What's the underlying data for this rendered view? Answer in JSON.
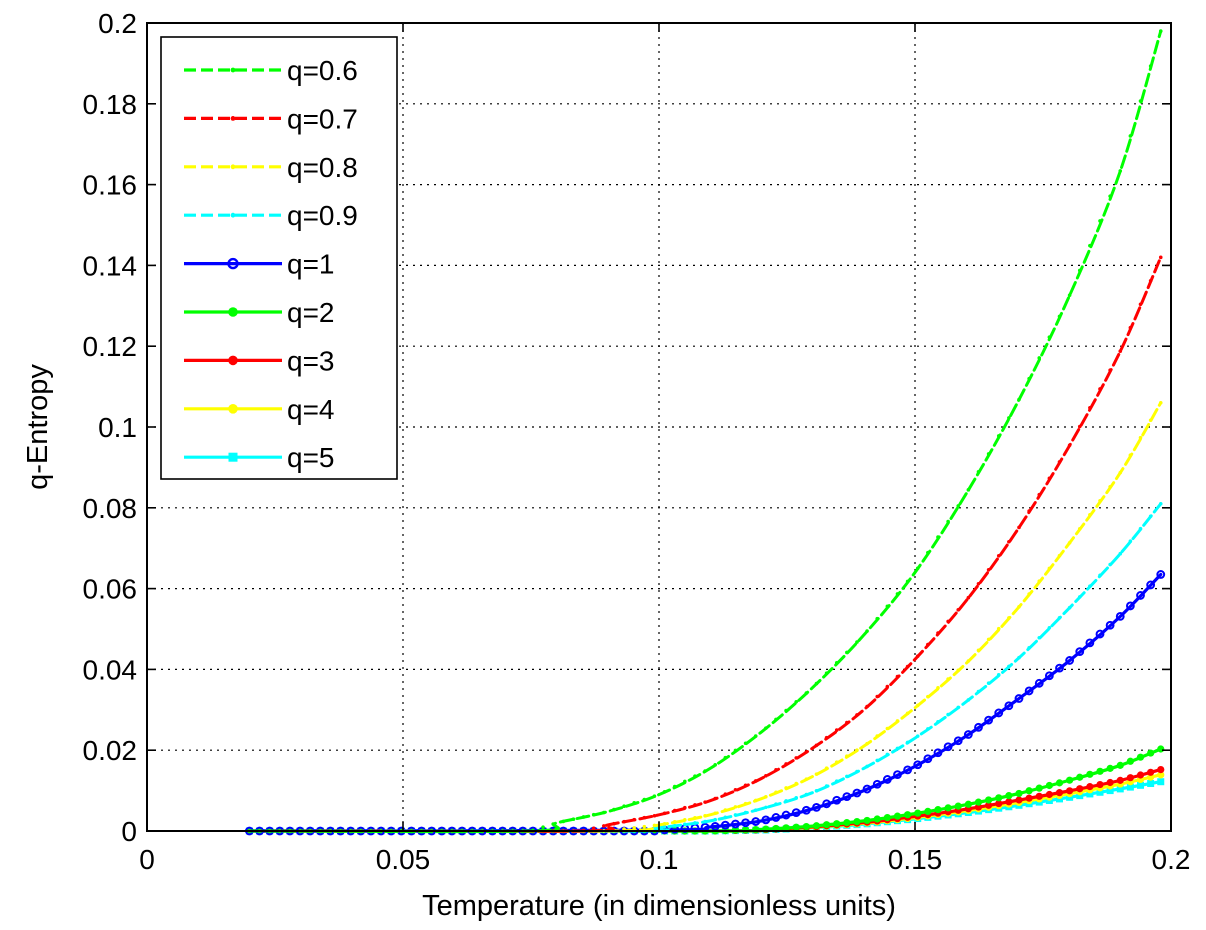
{
  "chart_data": {
    "type": "line",
    "title": "",
    "xlabel": "Temperature (in dimensionless units)",
    "ylabel": "q-Entropy",
    "xlim": [
      0,
      0.2
    ],
    "ylim": [
      0,
      0.2
    ],
    "xticks": [
      0,
      0.05,
      0.1,
      0.15,
      0.2
    ],
    "xtick_labels": [
      "0",
      "0.05",
      "0.1",
      "0.15",
      "0.2"
    ],
    "yticks": [
      0,
      0.02,
      0.04,
      0.06,
      0.08,
      0.1,
      0.12,
      0.14,
      0.16,
      0.18,
      0.2
    ],
    "ytick_labels": [
      "0",
      "0.02",
      "0.04",
      "0.06",
      "0.08",
      "0.1",
      "0.12",
      "0.14",
      "0.16",
      "0.18",
      "0.2"
    ],
    "grid": true,
    "legend_position": "top-left",
    "series": [
      {
        "name": "q=0.6",
        "color": "#00ff00",
        "style": "dashed",
        "marker": "point",
        "x": [
          0.075,
          0.08,
          0.09,
          0.1,
          0.11,
          0.12,
          0.13,
          0.14,
          0.15,
          0.16,
          0.17,
          0.18,
          0.19,
          0.198
        ],
        "y": [
          0.0,
          0.002,
          0.0048,
          0.009,
          0.0155,
          0.0245,
          0.0355,
          0.0485,
          0.064,
          0.0835,
          0.106,
          0.132,
          0.163,
          0.198
        ]
      },
      {
        "name": "q=0.7",
        "color": "#ff0000",
        "style": "dashed",
        "marker": "point",
        "x": [
          0.085,
          0.09,
          0.1,
          0.11,
          0.12,
          0.13,
          0.14,
          0.15,
          0.16,
          0.17,
          0.18,
          0.19,
          0.198
        ],
        "y": [
          0.0,
          0.0015,
          0.004,
          0.0075,
          0.013,
          0.0205,
          0.03,
          0.0425,
          0.057,
          0.0745,
          0.095,
          0.1185,
          0.142
        ]
      },
      {
        "name": "q=0.8",
        "color": "#ffff00",
        "style": "dashed",
        "marker": "point",
        "x": [
          0.09,
          0.1,
          0.11,
          0.12,
          0.13,
          0.14,
          0.15,
          0.16,
          0.17,
          0.18,
          0.19,
          0.198
        ],
        "y": [
          0.0,
          0.0015,
          0.004,
          0.008,
          0.0135,
          0.021,
          0.0305,
          0.0415,
          0.055,
          0.071,
          0.0885,
          0.106
        ]
      },
      {
        "name": "q=0.9",
        "color": "#00ffff",
        "style": "dashed",
        "marker": "point",
        "x": [
          0.095,
          0.1,
          0.11,
          0.12,
          0.13,
          0.14,
          0.15,
          0.16,
          0.17,
          0.18,
          0.19,
          0.198
        ],
        "y": [
          0.0,
          0.0008,
          0.0025,
          0.0055,
          0.0095,
          0.0155,
          0.023,
          0.032,
          0.0425,
          0.055,
          0.0685,
          0.081
        ]
      },
      {
        "name": "q=1",
        "color": "#0000ff",
        "style": "solid",
        "marker": "circle",
        "x": [
          0.1,
          0.11,
          0.12,
          0.13,
          0.14,
          0.15,
          0.16,
          0.17,
          0.18,
          0.19,
          0.198
        ],
        "y": [
          0.0002,
          0.001,
          0.0025,
          0.0055,
          0.01,
          0.016,
          0.0235,
          0.0325,
          0.042,
          0.053,
          0.0635
        ]
      },
      {
        "name": "q=2",
        "color": "#00ff00",
        "style": "solid",
        "marker": "dot",
        "x": [
          0.11,
          0.12,
          0.13,
          0.14,
          0.15,
          0.16,
          0.17,
          0.18,
          0.19,
          0.198
        ],
        "y": [
          0.0,
          0.0004,
          0.0012,
          0.0025,
          0.0043,
          0.0065,
          0.0092,
          0.0125,
          0.0162,
          0.0203
        ]
      },
      {
        "name": "q=3",
        "color": "#ff0000",
        "style": "solid",
        "marker": "dot",
        "x": [
          0.11,
          0.12,
          0.13,
          0.14,
          0.15,
          0.16,
          0.17,
          0.18,
          0.19,
          0.198
        ],
        "y": [
          0.0,
          0.0003,
          0.001,
          0.0021,
          0.0036,
          0.0054,
          0.0076,
          0.0099,
          0.0125,
          0.0152
        ]
      },
      {
        "name": "q=4",
        "color": "#ffff00",
        "style": "solid",
        "marker": "dot",
        "x": [
          0.11,
          0.12,
          0.13,
          0.14,
          0.15,
          0.16,
          0.17,
          0.18,
          0.19,
          0.198
        ],
        "y": [
          0.0,
          0.0003,
          0.0009,
          0.0019,
          0.0033,
          0.005,
          0.007,
          0.0092,
          0.0116,
          0.0139
        ]
      },
      {
        "name": "q=5",
        "color": "#00ffff",
        "style": "solid",
        "marker": "square",
        "x": [
          0.11,
          0.12,
          0.13,
          0.14,
          0.15,
          0.16,
          0.17,
          0.18,
          0.19,
          0.198
        ],
        "y": [
          0.0,
          0.0002,
          0.0008,
          0.0017,
          0.003,
          0.0045,
          0.0063,
          0.0083,
          0.0104,
          0.0122
        ]
      }
    ]
  }
}
